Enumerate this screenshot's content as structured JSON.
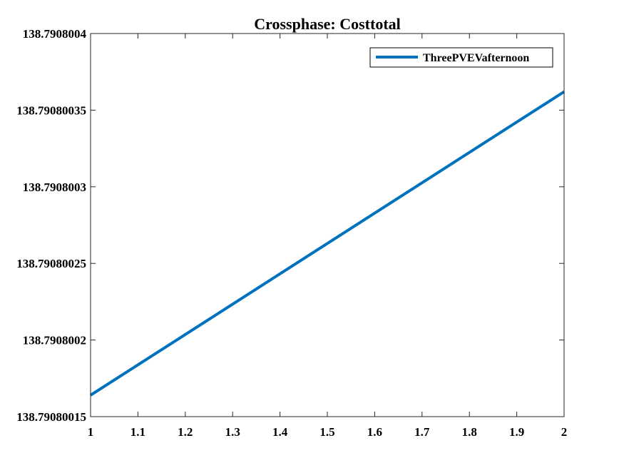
{
  "chart_data": {
    "type": "line",
    "title": "Crossphase: Costtotal",
    "xlabel": "",
    "ylabel": "",
    "xlim": [
      1,
      2
    ],
    "ylim": [
      138.79080015,
      138.7908004
    ],
    "x_ticks": [
      1,
      1.1,
      1.2,
      1.3,
      1.4,
      1.5,
      1.6,
      1.7,
      1.8,
      1.9,
      2
    ],
    "x_tick_labels": [
      "1",
      "1.1",
      "1.2",
      "1.3",
      "1.4",
      "1.5",
      "1.6",
      "1.7",
      "1.8",
      "1.9",
      "2"
    ],
    "y_ticks": [
      138.79080015,
      138.7908002,
      138.79080025,
      138.7908003,
      138.79080035,
      138.7908004
    ],
    "y_tick_labels": [
      "138.79080015",
      "138.7908002",
      "138.79080025",
      "138.7908003",
      "138.79080035",
      "138.7908004"
    ],
    "grid": false,
    "legend_position": "top-right",
    "series": [
      {
        "name": "ThreePVEVafternoon",
        "color": "#0072BD",
        "x": [
          1,
          2
        ],
        "y": [
          138.790800164,
          138.790800362
        ]
      }
    ]
  }
}
